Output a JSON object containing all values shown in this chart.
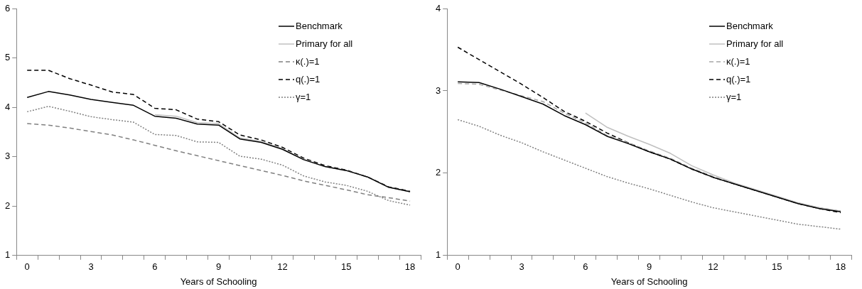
{
  "chart_data": [
    {
      "type": "line",
      "xlabel": "Years of Schooling",
      "categories": [
        "0",
        null,
        null,
        "3",
        null,
        null,
        "6",
        null,
        null,
        "9",
        null,
        null,
        "12",
        null,
        null,
        "15",
        null,
        null,
        "18"
      ],
      "ylim": [
        1,
        6
      ],
      "yticks": [
        1,
        2,
        3,
        4,
        5,
        6
      ],
      "legend": "top right",
      "series": [
        {
          "name": "Benchmark",
          "color": "#000000",
          "line_style": "solid",
          "values": [
            4.2,
            4.32,
            4.25,
            4.16,
            4.1,
            4.04,
            3.82,
            3.78,
            3.66,
            3.64,
            3.36,
            3.29,
            3.15,
            2.94,
            2.8,
            2.72,
            2.59,
            2.38,
            2.29
          ]
        },
        {
          "name": "Primary for all",
          "color": "#c0c0c0",
          "line_style": "solid",
          "values": [
            null,
            null,
            null,
            null,
            null,
            null,
            3.85,
            3.82,
            3.69,
            3.67,
            3.38,
            3.31,
            3.16,
            2.95,
            2.8,
            2.72,
            2.59,
            2.38,
            2.29
          ]
        },
        {
          "name": "κ(.)=1",
          "color": "#808080",
          "line_style": "dashed",
          "values": [
            3.67,
            3.64,
            3.58,
            3.51,
            3.44,
            3.34,
            3.23,
            3.12,
            3.02,
            2.92,
            2.82,
            2.72,
            2.62,
            2.51,
            2.42,
            2.33,
            2.23,
            2.17,
            2.1
          ]
        },
        {
          "name": "q(.)=1",
          "color": "#000000",
          "line_style": "dashed",
          "values": [
            4.75,
            4.75,
            4.58,
            4.45,
            4.31,
            4.26,
            3.98,
            3.95,
            3.76,
            3.71,
            3.44,
            3.34,
            3.19,
            2.97,
            2.82,
            2.73,
            2.59,
            2.39,
            2.3
          ]
        },
        {
          "name": "γ=1",
          "color": "#808080",
          "line_style": "dotted",
          "values": [
            3.91,
            4.02,
            3.92,
            3.81,
            3.75,
            3.7,
            3.45,
            3.43,
            3.3,
            3.29,
            3.01,
            2.95,
            2.83,
            2.61,
            2.49,
            2.42,
            2.3,
            2.11,
            2.02
          ]
        }
      ]
    },
    {
      "type": "line",
      "xlabel": "Years of Schooling",
      "categories": [
        "0",
        null,
        null,
        "3",
        null,
        null,
        "6",
        null,
        null,
        "9",
        null,
        null,
        "12",
        null,
        null,
        "15",
        null,
        null,
        "18"
      ],
      "ylim": [
        1,
        4
      ],
      "yticks": [
        1,
        2,
        3,
        4
      ],
      "legend": "top right",
      "series": [
        {
          "name": "Benchmark",
          "color": "#000000",
          "line_style": "solid",
          "values": [
            3.11,
            3.1,
            3.02,
            2.93,
            2.84,
            2.7,
            2.59,
            2.45,
            2.36,
            2.26,
            2.17,
            2.05,
            1.95,
            1.87,
            1.79,
            1.71,
            1.63,
            1.57,
            1.53
          ]
        },
        {
          "name": "Primary for all",
          "color": "#c0c0c0",
          "line_style": "solid",
          "values": [
            null,
            null,
            null,
            null,
            null,
            null,
            2.73,
            2.56,
            2.45,
            2.35,
            2.24,
            2.09,
            1.98,
            1.88,
            1.8,
            1.72,
            1.64,
            1.58,
            1.54
          ]
        },
        {
          "name": "κ(.)=1",
          "color": "#a6a6a6",
          "line_style": "dashed",
          "values": [
            3.09,
            3.08,
            3.01,
            2.94,
            2.87,
            2.73,
            2.61,
            2.46,
            2.37,
            2.27,
            2.18,
            2.06,
            1.96,
            1.87,
            1.79,
            1.71,
            1.63,
            1.58,
            1.54
          ]
        },
        {
          "name": "q(.)=1",
          "color": "#000000",
          "line_style": "dashed",
          "values": [
            3.53,
            3.38,
            3.23,
            3.08,
            2.92,
            2.75,
            2.63,
            2.49,
            2.37,
            2.26,
            2.17,
            2.05,
            1.95,
            1.87,
            1.79,
            1.71,
            1.63,
            1.57,
            1.52
          ]
        },
        {
          "name": "γ=1",
          "color": "#808080",
          "line_style": "dotted",
          "values": [
            2.65,
            2.57,
            2.46,
            2.37,
            2.26,
            2.16,
            2.06,
            1.96,
            1.88,
            1.81,
            1.73,
            1.65,
            1.58,
            1.53,
            1.48,
            1.43,
            1.38,
            1.35,
            1.32
          ]
        }
      ]
    }
  ]
}
